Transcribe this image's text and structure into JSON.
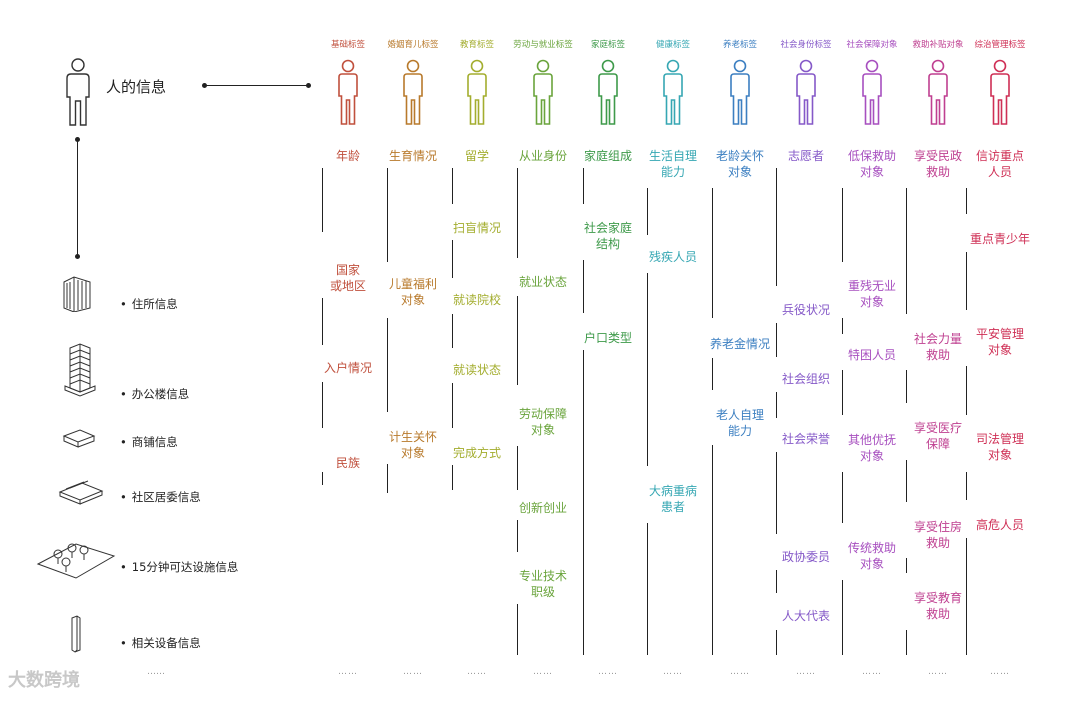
{
  "main": {
    "title": "人的信息"
  },
  "left_items": [
    {
      "label": "住所信息",
      "icon": "apartment-building-icon"
    },
    {
      "label": "办公楼信息",
      "icon": "office-tower-icon"
    },
    {
      "label": "商铺信息",
      "icon": "shop-block-icon"
    },
    {
      "label": "社区居委信息",
      "icon": "community-building-icon"
    },
    {
      "label": "15分钟可达设施信息",
      "icon": "facility-area-icon"
    },
    {
      "label": "相关设备信息",
      "icon": "device-pillar-icon"
    }
  ],
  "colors": [
    "#c0503d",
    "#b87a2c",
    "#a3ad2e",
    "#6aa43c",
    "#3e9a4a",
    "#36a7b3",
    "#3c7fc1",
    "#8559c8",
    "#a74fbf",
    "#bf3f90",
    "#cf2f55"
  ],
  "columns": [
    {
      "tag": "基础标签",
      "labels": [
        "年龄",
        "国家\n或地区",
        "入户情况",
        "民族"
      ]
    },
    {
      "tag": "婚姻育儿标签",
      "labels": [
        "生育情况",
        "儿童福利\n对象",
        "计生关怀\n对象"
      ]
    },
    {
      "tag": "教育标签",
      "labels": [
        "留学",
        "扫盲情况",
        "就读院校",
        "就读状态",
        "完成方式"
      ]
    },
    {
      "tag": "劳动与就业标签",
      "labels": [
        "从业身份",
        "就业状态",
        "劳动保障\n对象",
        "创新创业",
        "专业技术\n职级"
      ]
    },
    {
      "tag": "家庭标签",
      "labels": [
        "家庭组成",
        "社会家庭\n结构",
        "户口类型"
      ]
    },
    {
      "tag": "健康标签",
      "labels": [
        "生活自理\n能力",
        "残疾人员",
        "大病重病\n患者"
      ]
    },
    {
      "tag": "养老标签",
      "labels": [
        "老龄关怀\n对象",
        "养老金情况",
        "老人自理\n能力"
      ]
    },
    {
      "tag": "社会身份标签",
      "labels": [
        "志愿者",
        "兵役状况",
        "社会组织",
        "社会荣誉",
        "政协委员",
        "人大代表"
      ]
    },
    {
      "tag": "社会保障对象",
      "labels": [
        "低保救助\n对象",
        "重残无业\n对象",
        "特困人员",
        "其他优抚\n对象",
        "传统救助\n对象"
      ]
    },
    {
      "tag": "救助补贴对象",
      "labels": [
        "享受民政\n救助",
        "社会力量\n救助",
        "享受医疗\n保障",
        "享受住房\n救助",
        "享受教育\n救助"
      ]
    },
    {
      "tag": "综治管理标签",
      "labels": [
        "信访重点\n人员",
        "重点青少年",
        "平安管理\n对象",
        "司法管理\n对象",
        "高危人员"
      ]
    }
  ],
  "ellipsis": "……",
  "watermark": "大数跨境"
}
